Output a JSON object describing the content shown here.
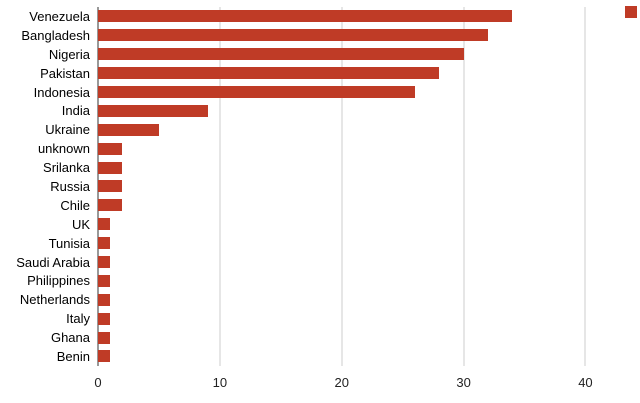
{
  "chart_data": {
    "type": "bar",
    "orientation": "horizontal",
    "title": "",
    "xlabel": "",
    "ylabel": "",
    "categories": [
      "Venezuela",
      "Bangladesh",
      "Nigeria",
      "Pakistan",
      "Indonesia",
      "India",
      "Ukraine",
      "unknown",
      "Srilanka",
      "Russia",
      "Chile",
      "UK",
      "Tunisia",
      "Saudi Arabia",
      "Philippines",
      "Netherlands",
      "Italy",
      "Ghana",
      "Benin"
    ],
    "values": [
      34,
      32,
      30,
      28,
      26,
      9,
      5,
      2,
      2,
      2,
      2,
      1,
      1,
      1,
      1,
      1,
      1,
      1,
      1
    ],
    "x_ticks": [
      0,
      10,
      20,
      30,
      40
    ],
    "xlim": [
      0,
      43
    ],
    "grid": true,
    "bar_color": "#bf3b26",
    "gridline_color": "#cccccc",
    "baseline_color": "#333333",
    "legend": {
      "position": "top-right",
      "swatch_color": "#bf3b26"
    }
  }
}
